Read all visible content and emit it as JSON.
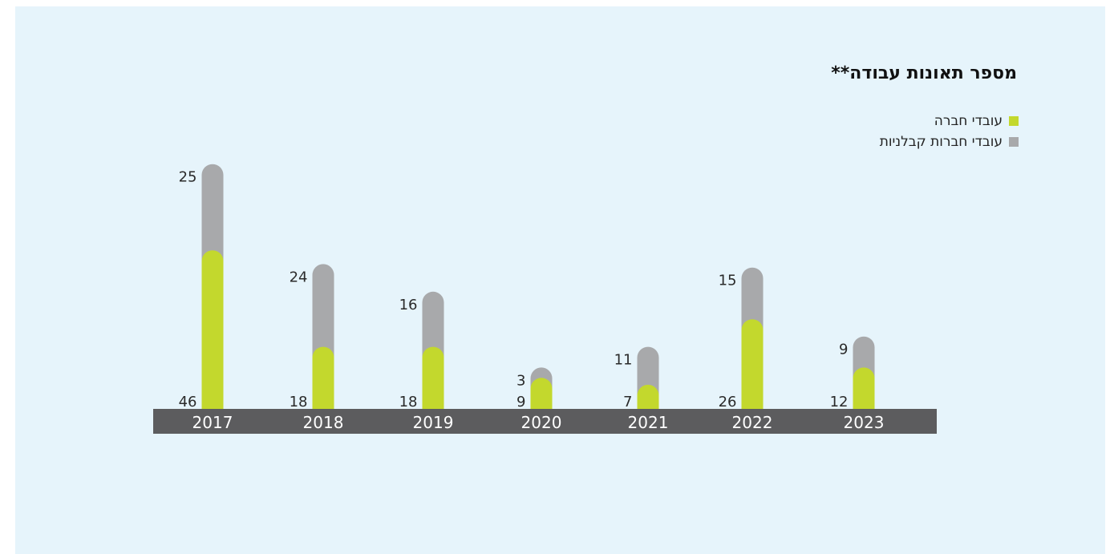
{
  "chart_data": {
    "type": "bar",
    "title": "מספר תאונות עבודה**",
    "categories": [
      "2017",
      "2018",
      "2019",
      "2020",
      "2021",
      "2022",
      "2023"
    ],
    "series": [
      {
        "name": "עובדי חברה",
        "values": [
          46,
          18,
          18,
          9,
          7,
          26,
          12
        ],
        "color": "#c3d82d"
      },
      {
        "name": "עובדי חברות קבלניות",
        "values": [
          25,
          24,
          16,
          3,
          11,
          15,
          9
        ],
        "color": "#a8a9ab"
      }
    ],
    "stacked": true,
    "legend_position": "top-right",
    "grid": false,
    "axis_bar_color": "#5c5c5e"
  }
}
